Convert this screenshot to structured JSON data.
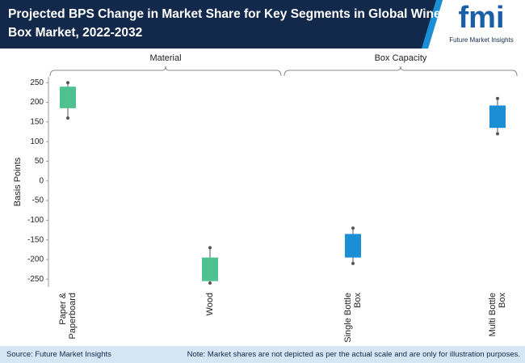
{
  "header": {
    "title_lines": [
      "Projected BPS Change in Market Share for Key Segments in Global Wine",
      "Box Market, 2022-2032"
    ],
    "logo": "fmi",
    "logo_tagline": "Future Market Insights"
  },
  "chart_data": {
    "type": "floating-box",
    "y_label": "Basis Points",
    "ylim": [
      -270,
      265
    ],
    "yticks": [
      250,
      200,
      150,
      100,
      50,
      0,
      -50,
      -100,
      -150,
      -200,
      -250
    ],
    "groups": [
      {
        "name": "Material",
        "color": "#4fc191",
        "categories": [
          [
            "Paper &",
            "Paperboard"
          ],
          [
            "Wood"
          ]
        ],
        "low": [
          160,
          -260
        ],
        "box_low": [
          185,
          -255
        ],
        "box_high": [
          240,
          -195
        ],
        "high": [
          250,
          -170
        ]
      },
      {
        "name": "Box Capacity",
        "color": "#1a8fd6",
        "categories": [
          [
            "Single Bottle",
            "Box"
          ],
          [
            "Multi Bottle",
            "Box"
          ]
        ],
        "low": [
          -210,
          120
        ],
        "box_low": [
          -195,
          135
        ],
        "box_high": [
          -135,
          192
        ],
        "high": [
          -120,
          210
        ]
      }
    ]
  },
  "footer": {
    "source": "Source: Future Market Insights",
    "note": "Note: Market shares are not depicted as per the actual scale and are only for illustration purposes."
  }
}
